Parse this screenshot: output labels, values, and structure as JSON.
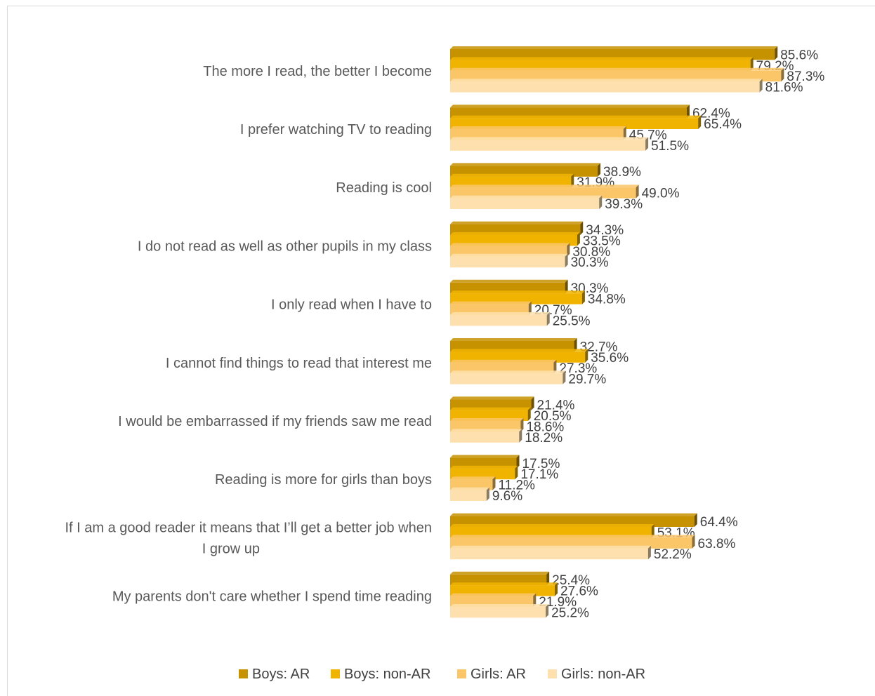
{
  "chart_data": {
    "type": "bar",
    "orientation": "horizontal",
    "title": "",
    "xlabel": "",
    "ylabel": "",
    "xlim": [
      0,
      100
    ],
    "grid": false,
    "legend_position": "bottom",
    "categories": [
      [
        "The more I read, the better I become"
      ],
      [
        "I prefer watching TV to reading"
      ],
      [
        "Reading is cool"
      ],
      [
        "I do not read as well as other pupils in my class"
      ],
      [
        "I only read when I have to"
      ],
      [
        "I cannot find things to read that interest me"
      ],
      [
        "I would be embarrassed if my friends saw me read"
      ],
      [
        "Reading is more for girls than boys"
      ],
      [
        "If I am a good reader it means that I’ll get a better job when",
        "I grow up"
      ],
      [
        "My parents don't care whether I spend time reading"
      ]
    ],
    "series": [
      {
        "name": "Boys: AR",
        "color": "#C69200",
        "values": [
          85.6,
          62.4,
          38.9,
          34.3,
          30.3,
          32.7,
          21.4,
          17.5,
          64.4,
          25.4
        ],
        "labels": [
          "85.6%",
          "62.4%",
          "38.9%",
          "34.3%",
          "30.3%",
          "32.7%",
          "21.4%",
          "17.5%",
          "64.4%",
          "25.4%"
        ]
      },
      {
        "name": "Boys: non-AR",
        "color": "#F0B400",
        "values": [
          79.2,
          65.4,
          31.9,
          33.5,
          34.8,
          35.6,
          20.5,
          17.1,
          53.1,
          27.6
        ],
        "labels": [
          "79.2%",
          "65.4%",
          "31.9%",
          "33.5%",
          "34.8%",
          "35.6%",
          "20.5%",
          "17.1%",
          "53.1%",
          "27.6%"
        ]
      },
      {
        "name": "Girls: AR",
        "color": "#FAC668",
        "values": [
          87.3,
          45.7,
          49.0,
          30.8,
          20.7,
          27.3,
          18.6,
          11.2,
          63.8,
          21.9
        ],
        "labels": [
          "87.3%",
          "45.7%",
          "49.0%",
          "30.8%",
          "20.7%",
          "27.3%",
          "18.6%",
          "11.2%",
          "63.8%",
          "21.9%"
        ]
      },
      {
        "name": "Girls: non-AR",
        "color": "#FDE0AD",
        "values": [
          81.6,
          51.5,
          39.3,
          30.3,
          25.5,
          29.7,
          18.2,
          9.6,
          52.2,
          25.2
        ],
        "labels": [
          "81.6%",
          "51.5%",
          "39.3%",
          "30.3%",
          "25.5%",
          "29.7%",
          "18.2%",
          "9.6%",
          "52.2%",
          "25.2%"
        ]
      }
    ]
  }
}
